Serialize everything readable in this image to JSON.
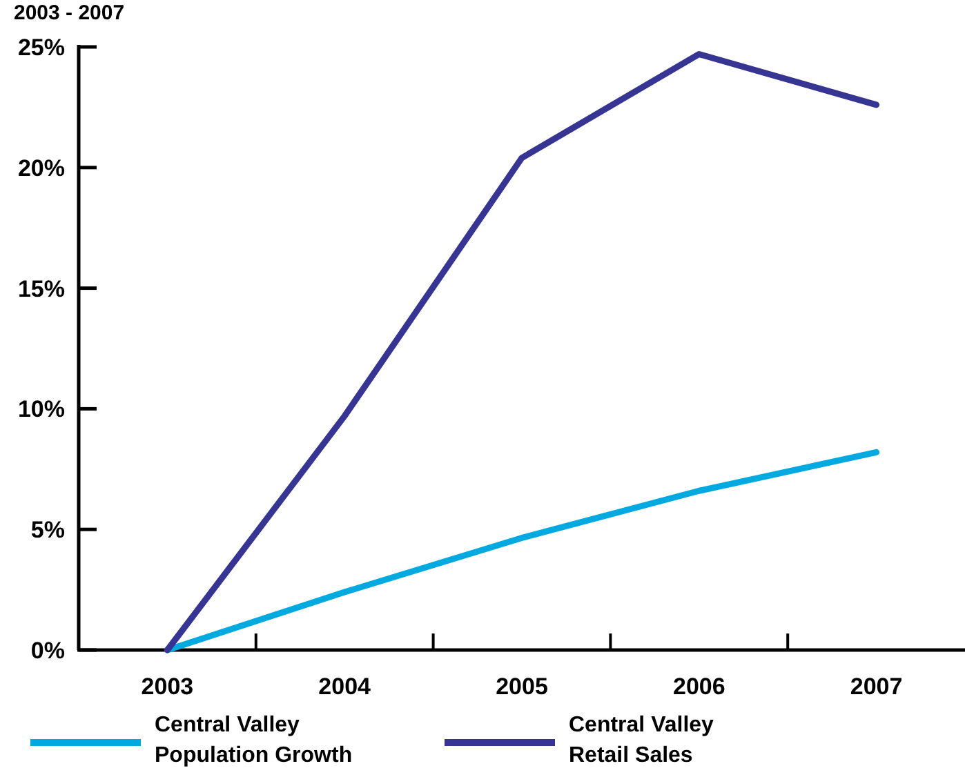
{
  "chart_data": {
    "type": "line",
    "title": "2003 - 2007",
    "categories": [
      "2003",
      "2004",
      "2005",
      "2006",
      "2007"
    ],
    "series": [
      {
        "name": "Central Valley Population Growth",
        "color": "#00a9e0",
        "values": [
          0,
          2.4,
          4.65,
          6.6,
          8.2
        ]
      },
      {
        "name": "Central Valley Retail Sales",
        "color": "#363593",
        "values": [
          0,
          9.7,
          20.4,
          24.7,
          22.6
        ]
      }
    ],
    "ylim": [
      0,
      25
    ],
    "yticks": [
      {
        "value": 0,
        "label": "0%"
      },
      {
        "value": 5,
        "label": "5%"
      },
      {
        "value": 10,
        "label": "10%"
      },
      {
        "value": 15,
        "label": "15%"
      },
      {
        "value": 20,
        "label": "20%"
      },
      {
        "value": 25,
        "label": "25%"
      }
    ],
    "legend": "bottom",
    "grid": false,
    "marker": "none",
    "line_style": "solid"
  }
}
